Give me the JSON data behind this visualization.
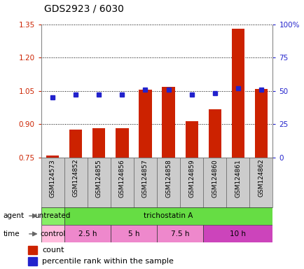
{
  "title": "GDS2923 / 6030",
  "samples": [
    "GSM124573",
    "GSM124852",
    "GSM124855",
    "GSM124856",
    "GSM124857",
    "GSM124858",
    "GSM124859",
    "GSM124860",
    "GSM124861",
    "GSM124862"
  ],
  "bar_values": [
    0.757,
    0.875,
    0.883,
    0.883,
    1.056,
    1.068,
    0.913,
    0.968,
    1.33,
    1.058
  ],
  "bar_bottom": 0.75,
  "blue_values": [
    45,
    47,
    47,
    47,
    51,
    51,
    47,
    48,
    52,
    51
  ],
  "left_ylim": [
    0.75,
    1.35
  ],
  "right_ylim": [
    0,
    100
  ],
  "left_yticks": [
    0.75,
    0.9,
    1.05,
    1.2,
    1.35
  ],
  "right_yticks": [
    0,
    25,
    50,
    75,
    100
  ],
  "right_yticklabels": [
    "0",
    "25",
    "50",
    "75",
    "100%"
  ],
  "bar_color": "#cc2200",
  "blue_color": "#2222cc",
  "background_color": "#ffffff",
  "plot_bg": "#ffffff",
  "agent_row": [
    {
      "label": "untreated",
      "start": 0,
      "end": 1,
      "color": "#88ee66"
    },
    {
      "label": "trichostatin A",
      "start": 1,
      "end": 10,
      "color": "#66dd44"
    }
  ],
  "time_row": [
    {
      "label": "control",
      "start": 0,
      "end": 1,
      "color": "#ffbbdd"
    },
    {
      "label": "2.5 h",
      "start": 1,
      "end": 3,
      "color": "#ee88cc"
    },
    {
      "label": "5 h",
      "start": 3,
      "end": 5,
      "color": "#ee88cc"
    },
    {
      "label": "7.5 h",
      "start": 5,
      "end": 7,
      "color": "#ee88cc"
    },
    {
      "label": "10 h",
      "start": 7,
      "end": 10,
      "color": "#cc44bb"
    }
  ],
  "agent_label": "agent",
  "time_label": "time",
  "legend_count_label": "count",
  "legend_pct_label": "percentile rank within the sample",
  "label_bg": "#cccccc"
}
